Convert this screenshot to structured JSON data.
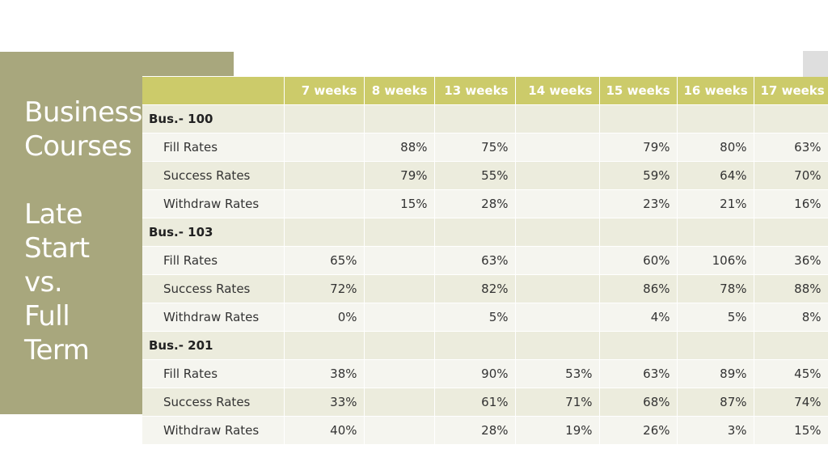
{
  "sidebar": {
    "title_lines": [
      "Business",
      "Courses"
    ],
    "subtitle_lines": [
      "Late",
      "Start",
      "vs.",
      "Full",
      "Term"
    ]
  },
  "table": {
    "columns": [
      "",
      "7 weeks",
      "8 weeks",
      "13 weeks",
      "14 weeks",
      "15 weeks",
      "16 weeks",
      "17 weeks"
    ],
    "groups": [
      {
        "name": "Bus.- 100",
        "rows": [
          {
            "label": "Fill Rates",
            "values": [
              "",
              "88%",
              "75%",
              "",
              "79%",
              "80%",
              "63%"
            ]
          },
          {
            "label": "Success Rates",
            "values": [
              "",
              "79%",
              "55%",
              "",
              "59%",
              "64%",
              "70%"
            ]
          },
          {
            "label": "Withdraw Rates",
            "values": [
              "",
              "15%",
              "28%",
              "",
              "23%",
              "21%",
              "16%"
            ]
          }
        ]
      },
      {
        "name": "Bus.- 103",
        "rows": [
          {
            "label": "Fill Rates",
            "values": [
              "65%",
              "",
              "63%",
              "",
              "60%",
              "106%",
              "36%"
            ]
          },
          {
            "label": "Success Rates",
            "values": [
              "72%",
              "",
              "82%",
              "",
              "86%",
              "78%",
              "88%"
            ]
          },
          {
            "label": "Withdraw Rates",
            "values": [
              "0%",
              "",
              "5%",
              "",
              "4%",
              "5%",
              "8%"
            ]
          }
        ]
      },
      {
        "name": "Bus.- 201",
        "rows": [
          {
            "label": "Fill Rates",
            "values": [
              "38%",
              "",
              "90%",
              "53%",
              "63%",
              "89%",
              "45%"
            ]
          },
          {
            "label": "Success Rates",
            "values": [
              "33%",
              "",
              "61%",
              "71%",
              "68%",
              "87%",
              "74%"
            ]
          },
          {
            "label": "Withdraw Rates",
            "values": [
              "40%",
              "",
              "28%",
              "19%",
              "26%",
              "3%",
              "15%"
            ]
          }
        ]
      }
    ]
  },
  "colors": {
    "panel": "#a8a77d",
    "header": "#cccb6a",
    "row_light": "#f5f5ef",
    "row_dark": "#ececdd"
  }
}
